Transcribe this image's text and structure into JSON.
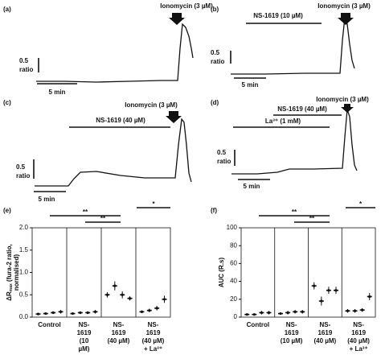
{
  "trace_panels": [
    {
      "label": "(a)",
      "ionomycin": "Ionomycin (3 µM)",
      "treatments": [],
      "scale_y": "0.5",
      "scale_unit": "ratio",
      "scale_x": "5 min"
    },
    {
      "label": "(b)",
      "ionomycin": "Ionomycin (3 µM)",
      "treatments": [
        "NS-1619 (10 µM)"
      ],
      "scale_y": "0.5",
      "scale_unit": "ratio",
      "scale_x": "5 min"
    },
    {
      "label": "(c)",
      "ionomycin": "Ionomycin (3 µM)",
      "treatments": [
        "NS-1619 (40 µM)"
      ],
      "scale_y": "0.5",
      "scale_unit": "ratio",
      "scale_x": "5 min"
    },
    {
      "label": "(d)",
      "ionomycin": "Ionomycin (3 µM)",
      "treatments": [
        "NS-1619 (40 µM)",
        "La³⁺ (1 mM)"
      ],
      "scale_y": "0.5",
      "scale_unit": "ratio",
      "scale_x": "5 min"
    }
  ],
  "chart_data": [
    {
      "type": "dot",
      "panel": "(e)",
      "ylabel": [
        "ΔR",
        "max",
        " (fura-2 ratio,",
        "normalised)"
      ],
      "ylim": [
        0,
        2
      ],
      "yticks": [
        {
          "value": 0,
          "label": "0.0"
        },
        {
          "value": 0.5,
          "label": "0.5"
        },
        {
          "value": 1,
          "label": "1.0"
        },
        {
          "value": 1.5,
          "label": "1.5"
        },
        {
          "value": 2,
          "label": "2.0"
        }
      ],
      "groups": [
        {
          "label": [
            "Control"
          ],
          "values": [
            0.07,
            0.08,
            0.1,
            0.12
          ],
          "errors": [
            0.02,
            0.02,
            0.03,
            0.04
          ]
        },
        {
          "label": [
            "NS-",
            "1619",
            "(10",
            "µM)"
          ],
          "values": [
            0.08,
            0.1,
            0.1,
            0.12
          ],
          "errors": [
            0.02,
            0.03,
            0.03,
            0.04
          ]
        },
        {
          "label": [
            "NS-",
            "1619",
            "(40 µM)"
          ],
          "values": [
            0.5,
            0.7,
            0.5,
            0.42
          ],
          "errors": [
            0.06,
            0.1,
            0.08,
            0.05
          ]
        },
        {
          "label": [
            "NS-",
            "1619",
            "(40 µM)",
            "+ La³⁺"
          ],
          "values": [
            0.12,
            0.15,
            0.2,
            0.4
          ],
          "errors": [
            0.03,
            0.04,
            0.05,
            0.08
          ]
        }
      ],
      "significance": [
        "**",
        "**",
        "*"
      ]
    },
    {
      "type": "dot",
      "panel": "(f)",
      "ylabel": [
        "AUC (R.s)"
      ],
      "ylim": [
        0,
        100
      ],
      "yticks": [
        0,
        20,
        40,
        60,
        80,
        100
      ],
      "groups": [
        {
          "label": [
            "Control"
          ],
          "values": [
            3,
            3,
            5,
            5
          ],
          "errors": [
            1,
            1,
            2,
            2
          ]
        },
        {
          "label": [
            "NS-",
            "1619",
            "(10 µM)"
          ],
          "values": [
            4,
            5,
            6,
            6
          ],
          "errors": [
            1,
            2,
            2,
            2
          ]
        },
        {
          "label": [
            "NS-",
            "1619",
            "(40 µM)"
          ],
          "values": [
            35,
            18,
            30,
            30
          ],
          "errors": [
            4,
            5,
            4,
            4
          ]
        },
        {
          "label": [
            "NS-",
            "1619",
            "(40 µM)",
            "+ La³⁺"
          ],
          "values": [
            7,
            7,
            8,
            23
          ],
          "errors": [
            2,
            2,
            2,
            4
          ]
        }
      ],
      "significance": [
        "**",
        "**",
        "*"
      ]
    }
  ]
}
